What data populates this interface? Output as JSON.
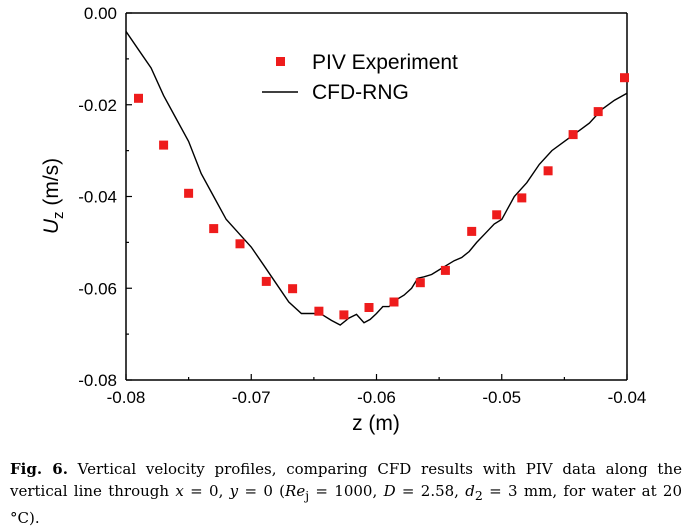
{
  "chart_data": {
    "type": "scatter",
    "title": "",
    "xlabel": "z (m)",
    "ylabel_main": "U",
    "ylabel_sub": "z",
    "ylabel_unit": " (m/s)",
    "xlim": [
      -0.08,
      -0.04
    ],
    "ylim": [
      -0.08,
      0.0
    ],
    "xticks": [
      -0.08,
      -0.07,
      -0.06,
      -0.05,
      -0.04
    ],
    "xtick_labels": [
      "-0.08",
      "-0.07",
      "-0.06",
      "-0.05",
      "-0.04"
    ],
    "yticks": [
      0.0,
      -0.02,
      -0.04,
      -0.06,
      -0.08
    ],
    "ytick_labels": [
      "0.00",
      "-0.02",
      "-0.04",
      "-0.06",
      "-0.08"
    ],
    "grid": false,
    "legend_position": "top-right",
    "series": [
      {
        "name": "PIV Experiment",
        "kind": "markers",
        "color": "#ee1c1c",
        "marker": "square",
        "x": [
          -0.079,
          -0.077,
          -0.075,
          -0.073,
          -0.0709,
          -0.0688,
          -0.0667,
          -0.0646,
          -0.0626,
          -0.0606,
          -0.0586,
          -0.0565,
          -0.0545,
          -0.0524,
          -0.0504,
          -0.0484,
          -0.0463,
          -0.0443,
          -0.0423,
          -0.0402
        ],
        "y": [
          -0.0186,
          -0.0288,
          -0.0393,
          -0.047,
          -0.0503,
          -0.0585,
          -0.0601,
          -0.065,
          -0.0658,
          -0.0642,
          -0.063,
          -0.0588,
          -0.0561,
          -0.0476,
          -0.044,
          -0.0403,
          -0.0344,
          -0.0265,
          -0.0215,
          -0.0141
        ]
      },
      {
        "name": "CFD-RNG",
        "kind": "line",
        "color": "#000000",
        "x": [
          -0.08,
          -0.079,
          -0.078,
          -0.077,
          -0.076,
          -0.075,
          -0.074,
          -0.073,
          -0.072,
          -0.071,
          -0.07,
          -0.069,
          -0.068,
          -0.067,
          -0.066,
          -0.065,
          -0.0643,
          -0.0636,
          -0.0629,
          -0.0622,
          -0.0616,
          -0.061,
          -0.0605,
          -0.06,
          -0.0595,
          -0.059,
          -0.0584,
          -0.0578,
          -0.0572,
          -0.0567,
          -0.0562,
          -0.0556,
          -0.055,
          -0.0544,
          -0.0538,
          -0.0532,
          -0.0526,
          -0.052,
          -0.0513,
          -0.0506,
          -0.05,
          -0.049,
          -0.048,
          -0.047,
          -0.046,
          -0.045,
          -0.044,
          -0.043,
          -0.042,
          -0.041,
          -0.04
        ],
        "y": [
          -0.004,
          -0.008,
          -0.012,
          -0.018,
          -0.023,
          -0.028,
          -0.035,
          -0.04,
          -0.045,
          -0.048,
          -0.051,
          -0.055,
          -0.059,
          -0.063,
          -0.0655,
          -0.0655,
          -0.0658,
          -0.067,
          -0.068,
          -0.0665,
          -0.0657,
          -0.0675,
          -0.0668,
          -0.0655,
          -0.064,
          -0.064,
          -0.0625,
          -0.0615,
          -0.06,
          -0.0578,
          -0.0575,
          -0.057,
          -0.056,
          -0.055,
          -0.054,
          -0.0533,
          -0.052,
          -0.05,
          -0.048,
          -0.046,
          -0.045,
          -0.04,
          -0.037,
          -0.033,
          -0.03,
          -0.028,
          -0.026,
          -0.024,
          -0.021,
          -0.019,
          -0.0175
        ]
      }
    ]
  },
  "caption": {
    "fig_label": "Fig. 6.",
    "seg1": " Vertical velocity profiles, comparing CFD results with PIV data along the vertical line through ",
    "x_var": "x",
    "seg2": " = 0, ",
    "y_var": "y",
    "seg3": " = 0 (",
    "re_main": "Re",
    "re_sub": "j",
    "seg4": " = 1000, ",
    "d_var": "D",
    "seg5": " = 2.58, ",
    "d2_main": "d",
    "d2_sub": "2",
    "seg6": " = 3 mm, for water at 20 °C)."
  }
}
